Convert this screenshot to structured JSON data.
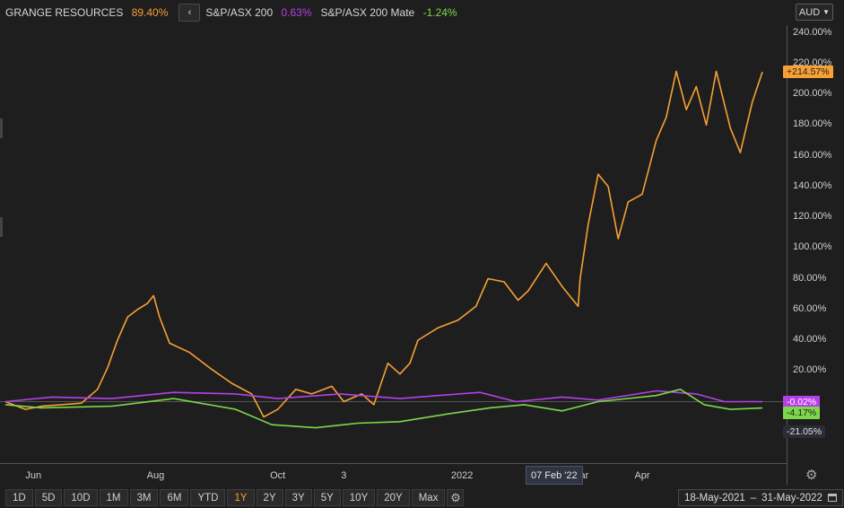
{
  "legend": [
    {
      "name": "GRANGE RESOURCES",
      "value": "89.40%",
      "color": "#f7a035"
    },
    {
      "name": "S&P/ASX 200",
      "value": "0.63%",
      "color": "#b640e8"
    },
    {
      "name": "S&P/ASX 200 Mate",
      "value": "-1.24%",
      "color": "#7cd84a"
    }
  ],
  "nav_icon": "chevron-left-icon",
  "currency": {
    "label": "AUD",
    "icon": "chevron-down-icon"
  },
  "settings_icon": "gear-icon",
  "calendar_icon": "calendar-icon",
  "range_buttons": [
    "1D",
    "5D",
    "10D",
    "1M",
    "3M",
    "6M",
    "YTD",
    "1Y",
    "2Y",
    "3Y",
    "5Y",
    "10Y",
    "20Y",
    "Max"
  ],
  "active_range": "1Y",
  "date_range": {
    "start": "18-May-2021",
    "separator": "–",
    "end": "31-May-2022"
  },
  "badges": [
    {
      "text": "+214.57%",
      "value": 214.57,
      "bg": "#f7a035",
      "fg": "#1e1e1e"
    },
    {
      "text": "-0.02%",
      "value": -0.02,
      "bg": "#b640e8",
      "fg": "#ffffff"
    },
    {
      "text": "-4.17%",
      "value": -4.17,
      "bg": "#7cd84a",
      "fg": "#1e1e1e"
    },
    {
      "text": "-21.05%",
      "value": -21.05,
      "bg": "#2a2d33",
      "fg": "#e0e0e0"
    }
  ],
  "crosshair_date": "07 Feb '22",
  "chart_data": {
    "type": "line",
    "ylim": [
      -40,
      245
    ],
    "y_ticks": [
      "20.00%",
      "40.00%",
      "60.00%",
      "80.00%",
      "100.00%",
      "120.00%",
      "140.00%",
      "160.00%",
      "180.00%",
      "200.00%",
      "220.00%",
      "240.00%"
    ],
    "y_tick_values": [
      20,
      40,
      60,
      80,
      100,
      120,
      140,
      160,
      180,
      200,
      220,
      240
    ],
    "x_ticks": [
      "Jun",
      "Aug",
      "Oct",
      "3",
      "2022",
      "Mar",
      "Apr"
    ],
    "x_tick_dates": [
      "2021-06-01",
      "2021-08-01",
      "2021-10-01",
      "2021-11-03",
      "2022-01-01",
      "2022-03-01",
      "2022-04-01"
    ],
    "x_range": [
      "2021-05-18",
      "2022-05-31"
    ],
    "series": [
      {
        "name": "GRANGE RESOURCES",
        "color": "#f7a035",
        "points": [
          [
            "2021-05-18",
            0
          ],
          [
            "2021-05-28",
            -5
          ],
          [
            "2021-06-05",
            -3
          ],
          [
            "2021-06-15",
            -2
          ],
          [
            "2021-06-25",
            -1
          ],
          [
            "2021-07-03",
            8
          ],
          [
            "2021-07-08",
            22
          ],
          [
            "2021-07-13",
            40
          ],
          [
            "2021-07-18",
            55
          ],
          [
            "2021-07-23",
            60
          ],
          [
            "2021-07-28",
            64
          ],
          [
            "2021-07-31",
            69
          ],
          [
            "2021-08-03",
            55
          ],
          [
            "2021-08-08",
            38
          ],
          [
            "2021-08-18",
            32
          ],
          [
            "2021-08-28",
            22
          ],
          [
            "2021-09-08",
            12
          ],
          [
            "2021-09-18",
            5
          ],
          [
            "2021-09-24",
            -10
          ],
          [
            "2021-10-01",
            -5
          ],
          [
            "2021-10-10",
            8
          ],
          [
            "2021-10-18",
            5
          ],
          [
            "2021-10-28",
            10
          ],
          [
            "2021-11-03",
            0
          ],
          [
            "2021-11-12",
            5
          ],
          [
            "2021-11-18",
            -2
          ],
          [
            "2021-11-25",
            25
          ],
          [
            "2021-12-01",
            18
          ],
          [
            "2021-12-06",
            25
          ],
          [
            "2021-12-10",
            40
          ],
          [
            "2021-12-20",
            48
          ],
          [
            "2021-12-30",
            53
          ],
          [
            "2022-01-08",
            62
          ],
          [
            "2022-01-14",
            80
          ],
          [
            "2022-01-22",
            78
          ],
          [
            "2022-01-29",
            66
          ],
          [
            "2022-02-03",
            72
          ],
          [
            "2022-02-12",
            90
          ],
          [
            "2022-02-20",
            75
          ],
          [
            "2022-02-28",
            62
          ],
          [
            "2022-03-01",
            80
          ],
          [
            "2022-03-05",
            115
          ],
          [
            "2022-03-10",
            148
          ],
          [
            "2022-03-15",
            140
          ],
          [
            "2022-03-20",
            106
          ],
          [
            "2022-03-25",
            130
          ],
          [
            "2022-04-01",
            135
          ],
          [
            "2022-04-08",
            170
          ],
          [
            "2022-04-13",
            185
          ],
          [
            "2022-04-18",
            215
          ],
          [
            "2022-04-23",
            190
          ],
          [
            "2022-04-28",
            205
          ],
          [
            "2022-05-03",
            180
          ],
          [
            "2022-05-08",
            215
          ],
          [
            "2022-05-15",
            178
          ],
          [
            "2022-05-20",
            162
          ],
          [
            "2022-05-26",
            195
          ],
          [
            "2022-05-31",
            214.57
          ]
        ]
      },
      {
        "name": "S&P/ASX 200",
        "color": "#b640e8",
        "points": [
          [
            "2021-05-18",
            0
          ],
          [
            "2021-06-10",
            3
          ],
          [
            "2021-07-10",
            2
          ],
          [
            "2021-08-10",
            6
          ],
          [
            "2021-09-10",
            5
          ],
          [
            "2021-10-01",
            2
          ],
          [
            "2021-11-01",
            5
          ],
          [
            "2021-12-01",
            2
          ],
          [
            "2021-12-20",
            4
          ],
          [
            "2022-01-10",
            6
          ],
          [
            "2022-01-28",
            0
          ],
          [
            "2022-02-20",
            3
          ],
          [
            "2022-03-10",
            1
          ],
          [
            "2022-04-08",
            7
          ],
          [
            "2022-04-28",
            5
          ],
          [
            "2022-05-12",
            0
          ],
          [
            "2022-05-31",
            -0.02
          ]
        ]
      },
      {
        "name": "S&P/ASX 200 Mate",
        "color": "#7cd84a",
        "points": [
          [
            "2021-05-18",
            -2
          ],
          [
            "2021-06-05",
            -4
          ],
          [
            "2021-07-10",
            -3
          ],
          [
            "2021-08-10",
            2
          ],
          [
            "2021-09-10",
            -5
          ],
          [
            "2021-09-28",
            -15
          ],
          [
            "2021-10-20",
            -17
          ],
          [
            "2021-11-10",
            -14
          ],
          [
            "2021-12-01",
            -13
          ],
          [
            "2021-12-25",
            -8
          ],
          [
            "2022-01-15",
            -4
          ],
          [
            "2022-02-01",
            -2
          ],
          [
            "2022-02-20",
            -6
          ],
          [
            "2022-03-10",
            0
          ],
          [
            "2022-04-08",
            4
          ],
          [
            "2022-04-20",
            8
          ],
          [
            "2022-05-02",
            -2
          ],
          [
            "2022-05-15",
            -5
          ],
          [
            "2022-05-31",
            -4.17
          ]
        ]
      }
    ]
  }
}
